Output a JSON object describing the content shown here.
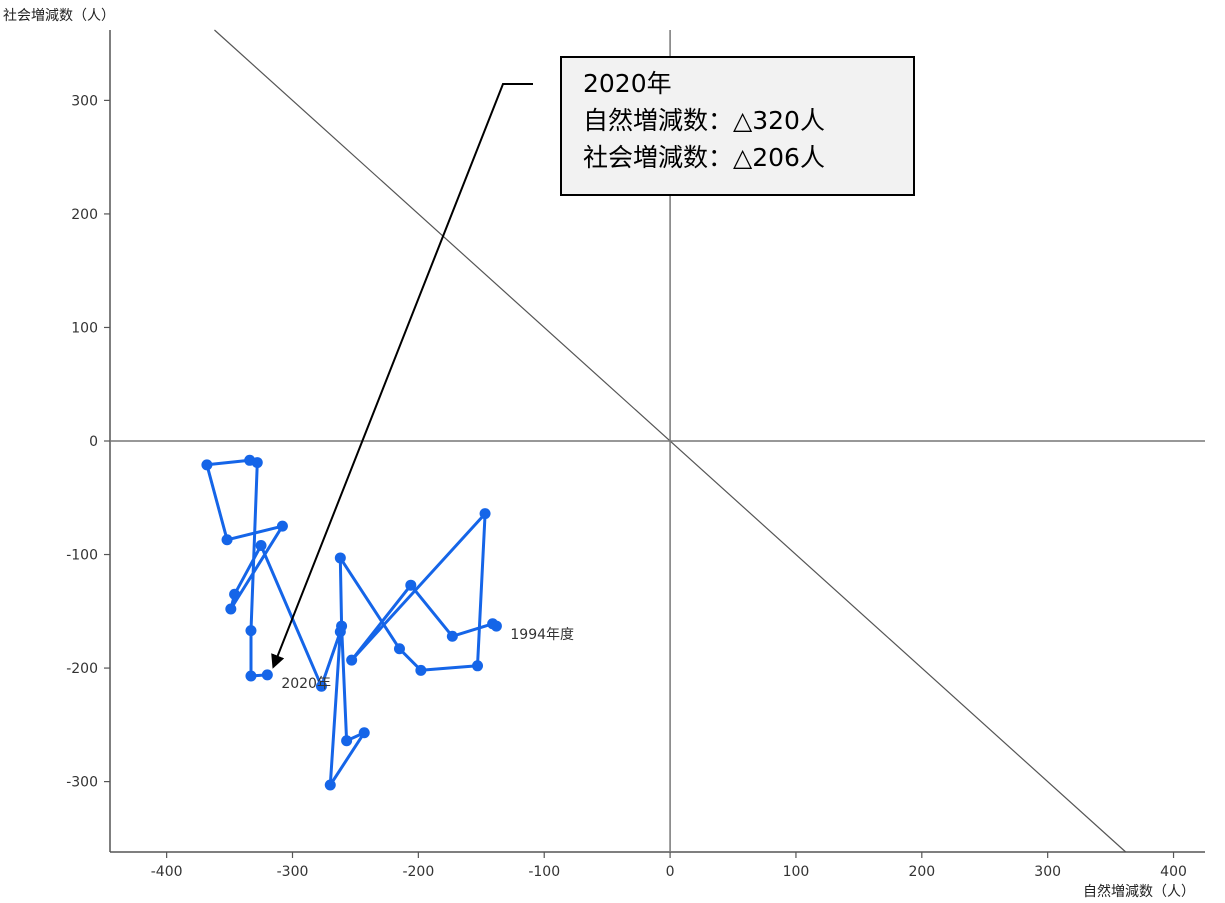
{
  "chart_data": {
    "type": "scatter",
    "xlabel": "自然増減数（人）",
    "ylabel": "社会増減数（人）",
    "xlim": [
      -445,
      425
    ],
    "ylim": [
      -362,
      362
    ],
    "x_ticks": [
      -400,
      -300,
      -200,
      -100,
      0,
      100,
      200,
      300,
      400
    ],
    "y_ticks": [
      -300,
      -200,
      -100,
      0,
      100,
      200,
      300
    ],
    "grid": false,
    "line_color": "#1565e8",
    "series": [
      {
        "points": [
          [
            -138,
            -163
          ],
          [
            -141,
            -161
          ],
          [
            -173,
            -172
          ],
          [
            -206,
            -127
          ],
          [
            -253,
            -193
          ],
          [
            -147,
            -64
          ],
          [
            -153,
            -198
          ],
          [
            -198,
            -202
          ],
          [
            -215,
            -183
          ],
          [
            -262,
            -103
          ],
          [
            -261,
            -163
          ],
          [
            -257,
            -264
          ],
          [
            -243,
            -257
          ],
          [
            -270,
            -303
          ],
          [
            -262,
            -168
          ],
          [
            -277,
            -216
          ],
          [
            -325,
            -92
          ],
          [
            -346,
            -135
          ],
          [
            -349,
            -148
          ],
          [
            -308,
            -75
          ],
          [
            -352,
            -87
          ],
          [
            -368,
            -21
          ],
          [
            -334,
            -17
          ],
          [
            -328,
            -19
          ],
          [
            -333,
            -167
          ],
          [
            -333,
            -207
          ],
          [
            -320,
            -206
          ]
        ],
        "labels": [
          {
            "index": 0,
            "text": "1994年度"
          },
          {
            "index": 26,
            "text": "2020年"
          }
        ]
      }
    ],
    "reference_line": {
      "slope": -1,
      "intercept": 0
    },
    "annotation": {
      "lines": [
        "2020年",
        "自然増減数：△320人",
        "社会増減数：△206人"
      ],
      "point_index": 26
    }
  }
}
